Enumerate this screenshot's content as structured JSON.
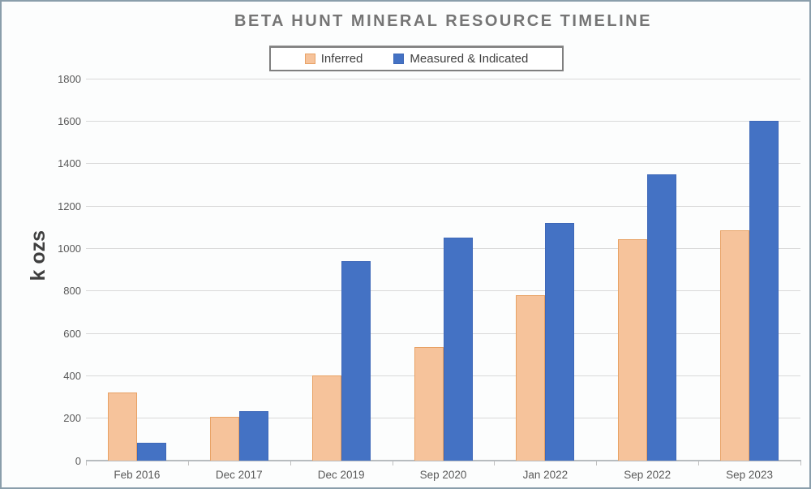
{
  "window": {
    "background": "#fcfdfd",
    "frame_border_color": "#8a9eab"
  },
  "chart_data": {
    "type": "bar",
    "title": "BETA HUNT MINERAL RESOURCE TIMELINE",
    "categories": [
      "Feb 2016",
      "Dec 2017",
      "Dec 2019",
      "Sep 2020",
      "Jan 2022",
      "Sep 2022",
      "Sep 2023"
    ],
    "series": [
      {
        "name": "Inferred",
        "fill": "#f6c39b",
        "border": "#e8a265",
        "values": [
          320,
          205,
          400,
          535,
          780,
          1045,
          1085
        ]
      },
      {
        "name": "Measured & Indicated",
        "fill": "#4472c4",
        "border": "#3e68b8",
        "values": [
          85,
          235,
          940,
          1050,
          1120,
          1350,
          1600
        ]
      }
    ],
    "xlabel": "",
    "ylabel": "k ozs",
    "ylim": [
      0,
      1800
    ],
    "yticks": [
      0,
      200,
      400,
      600,
      800,
      1000,
      1200,
      1400,
      1600,
      1800
    ],
    "grid": "horizontal gridlines on, every 200",
    "legend_position": "top-center",
    "colors": {
      "gridline": "#d9d9d9",
      "axis_line": "#b7bcbf",
      "tick_label": "#595959",
      "title_text": "#757575",
      "axis_title_text": "#3f3f3f",
      "legend_text": "#3f3f3f",
      "legend_border": "#7f7f7f"
    }
  }
}
